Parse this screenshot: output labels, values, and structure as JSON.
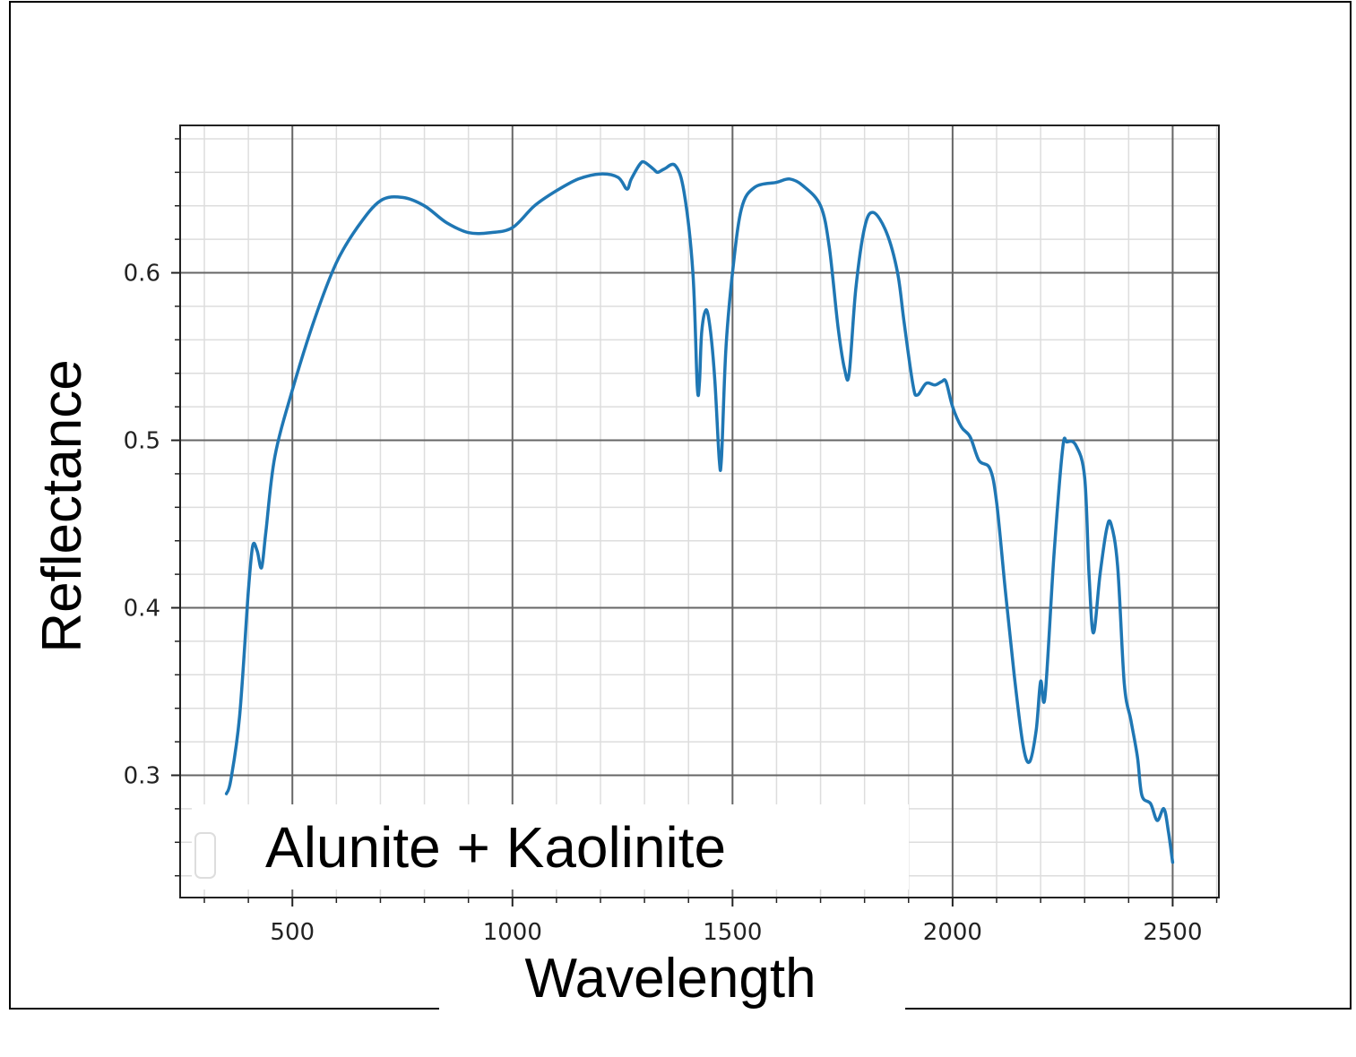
{
  "chart_data": {
    "type": "line",
    "title": "",
    "xlabel": "Wavelength",
    "ylabel": "Reflectance",
    "xlim": [
      245,
      2605
    ],
    "ylim": [
      0.227,
      0.688
    ],
    "x_ticks": [
      500,
      1000,
      1500,
      2000,
      2500
    ],
    "x_tick_labels": [
      "500",
      "1000",
      "1500",
      "2000",
      "2500"
    ],
    "y_ticks": [
      0.3,
      0.4,
      0.5,
      0.6
    ],
    "y_tick_labels": [
      "0.3",
      "0.4",
      "0.5",
      "0.6"
    ],
    "grid": true,
    "legend": "bottom-left",
    "line_color": "#1f77b4",
    "series": [
      {
        "name": "Alunite + Kaolinite",
        "x": [
          350,
          360,
          380,
          400,
          410,
          420,
          430,
          440,
          460,
          500,
          550,
          600,
          650,
          700,
          750,
          800,
          850,
          900,
          950,
          1000,
          1050,
          1100,
          1150,
          1200,
          1240,
          1260,
          1270,
          1290,
          1300,
          1320,
          1330,
          1345,
          1370,
          1390,
          1410,
          1420,
          1425,
          1430,
          1440,
          1450,
          1460,
          1470,
          1475,
          1485,
          1500,
          1520,
          1550,
          1600,
          1630,
          1660,
          1700,
          1720,
          1740,
          1755,
          1765,
          1780,
          1800,
          1820,
          1850,
          1875,
          1890,
          1910,
          1920,
          1940,
          1960,
          1975,
          1985,
          2000,
          2020,
          2040,
          2060,
          2085,
          2100,
          2120,
          2140,
          2160,
          2175,
          2190,
          2200,
          2210,
          2230,
          2250,
          2260,
          2280,
          2300,
          2310,
          2320,
          2335,
          2350,
          2360,
          2375,
          2390,
          2405,
          2420,
          2430,
          2450,
          2465,
          2480,
          2490,
          2500
        ],
        "y": [
          0.289,
          0.297,
          0.335,
          0.41,
          0.437,
          0.434,
          0.424,
          0.446,
          0.49,
          0.53,
          0.572,
          0.606,
          0.628,
          0.643,
          0.645,
          0.64,
          0.63,
          0.624,
          0.624,
          0.627,
          0.64,
          0.649,
          0.656,
          0.659,
          0.657,
          0.65,
          0.656,
          0.665,
          0.666,
          0.662,
          0.66,
          0.662,
          0.664,
          0.648,
          0.6,
          0.532,
          0.535,
          0.565,
          0.578,
          0.565,
          0.535,
          0.488,
          0.49,
          0.555,
          0.6,
          0.638,
          0.651,
          0.654,
          0.656,
          0.652,
          0.64,
          0.615,
          0.567,
          0.542,
          0.54,
          0.59,
          0.627,
          0.636,
          0.624,
          0.6,
          0.57,
          0.533,
          0.527,
          0.534,
          0.533,
          0.535,
          0.535,
          0.52,
          0.508,
          0.502,
          0.488,
          0.483,
          0.463,
          0.41,
          0.36,
          0.318,
          0.308,
          0.327,
          0.356,
          0.347,
          0.43,
          0.495,
          0.499,
          0.497,
          0.478,
          0.42,
          0.385,
          0.42,
          0.447,
          0.45,
          0.425,
          0.355,
          0.333,
          0.311,
          0.288,
          0.283,
          0.273,
          0.28,
          0.267,
          0.248
        ]
      }
    ]
  }
}
